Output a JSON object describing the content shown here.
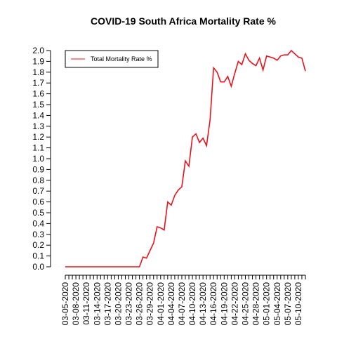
{
  "chart_data": {
    "type": "line",
    "title": "COVID-19 South Africa Mortality Rate %",
    "categories": [
      "03-05-2020",
      null,
      null,
      "03-08-2020",
      null,
      null,
      "03-11-2020",
      null,
      null,
      "03-14-2020",
      null,
      null,
      "03-17-2020",
      null,
      null,
      "03-20-2020",
      null,
      null,
      "03-23-2020",
      null,
      null,
      "03-26-2020",
      null,
      null,
      "03-29-2020",
      null,
      null,
      "04-01-2020",
      null,
      null,
      "04-04-2020",
      null,
      null,
      "04-07-2020",
      null,
      null,
      "04-10-2020",
      null,
      null,
      "04-13-2020",
      null,
      null,
      "04-16-2020",
      null,
      null,
      "04-19-2020",
      null,
      null,
      "04-22-2020",
      null,
      null,
      "04-25-2020",
      null,
      null,
      "04-28-2020",
      null,
      null,
      "05-01-2020",
      null,
      null,
      "05-04-2020",
      null,
      null,
      "05-07-2020",
      null,
      null,
      "05-10-2020",
      null,
      null
    ],
    "series": [
      {
        "name": "Total Mortality Rate %",
        "color": "#e8141c",
        "values": [
          0,
          0,
          0,
          0,
          0,
          0,
          0,
          0,
          0,
          0,
          0,
          0,
          0,
          0,
          0,
          0,
          0,
          0,
          0,
          0,
          0,
          0,
          0.09,
          0.08,
          0.15,
          0.22,
          0.37,
          0.36,
          0.34,
          0.6,
          0.57,
          0.66,
          0.71,
          0.74,
          0.98,
          0.93,
          1.2,
          1.23,
          1.15,
          1.19,
          1.12,
          1.36,
          1.84,
          1.8,
          1.71,
          1.71,
          1.76,
          1.67,
          1.79,
          1.9,
          1.87,
          1.97,
          1.91,
          1.88,
          1.86,
          1.93,
          1.82,
          1.95,
          1.94,
          1.93,
          1.91,
          1.95,
          1.96,
          1.96,
          2.0,
          1.97,
          1.94,
          1.93,
          1.81
        ]
      }
    ],
    "ylim": [
      0,
      2.0
    ],
    "yticks": [
      {
        "value": 0,
        "label": "0.0"
      },
      0.1,
      0.2,
      0.3,
      0.4,
      0.5,
      0.6,
      0.7,
      0.8,
      0.9,
      {
        "value": 1,
        "label": "1.0"
      },
      1.1,
      1.2,
      1.3,
      1.4,
      1.5,
      1.6,
      1.7,
      1.8,
      1.9,
      {
        "value": 2,
        "label": "2.0"
      }
    ],
    "legend": "topleft"
  }
}
